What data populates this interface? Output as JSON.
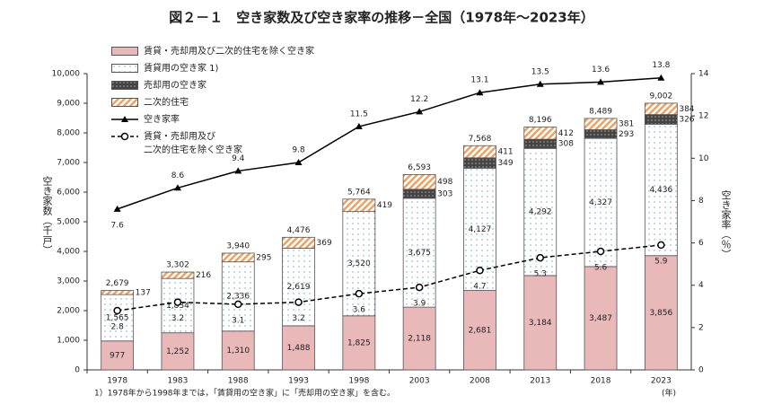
{
  "chart_data": {
    "type": "bar",
    "stacked": true,
    "title": "図２－１　空き家数及び空き家率の推移－全国（1978年～2023年）",
    "y_label": "空き家数（千戸）",
    "y2_label": "空き家率（％）",
    "x_unit": "(年)",
    "footnote": "1）1978年から1998年までは，「賃貸用の空き家」に「売却用の空き家」を含む。",
    "categories": [
      "1978",
      "1983",
      "1988",
      "1993",
      "1998",
      "2003",
      "2008",
      "2013",
      "2018",
      "2023"
    ],
    "ylim": [
      0,
      10000
    ],
    "yticks": [
      0,
      {
        "value": 1000,
        "label": "1,000"
      },
      {
        "value": 2000,
        "label": "2,000"
      },
      {
        "value": 3000,
        "label": "3,000"
      },
      {
        "value": 4000,
        "label": "4,000"
      },
      {
        "value": 5000,
        "label": "5,000"
      },
      {
        "value": 6000,
        "label": "6,000"
      },
      {
        "value": 7000,
        "label": "7,000"
      },
      {
        "value": 8000,
        "label": "8,000"
      },
      {
        "value": 9000,
        "label": "9,000"
      },
      {
        "value": 10000,
        "label": "10,000"
      }
    ],
    "y2lim": [
      0,
      14
    ],
    "y2ticks": [
      0,
      2,
      4,
      6,
      8,
      10,
      12,
      14
    ],
    "series": [
      {
        "name": "賃貸・売却用及び二次的住宅を除く空き家",
        "color": "#e9b8b8",
        "pattern": "solid",
        "label_pos": "center",
        "values": [
          977,
          1252,
          1310,
          1488,
          1825,
          2118,
          2681,
          3184,
          3487,
          3856
        ],
        "value_labels": [
          "977",
          "1,252",
          "1,310",
          "1,488",
          "1,825",
          "2,118",
          "2,681",
          "3,184",
          "3,487",
          "3,856"
        ]
      },
      {
        "name": "賃貸用の空き家 1)",
        "color": "#6fa0c8",
        "pattern": "dots",
        "label_pos": "center",
        "values": [
          1565,
          1834,
          2336,
          2619,
          3520,
          3675,
          4127,
          4292,
          4327,
          4436
        ],
        "value_labels": [
          "1,565",
          "1,834",
          "2,336",
          "2,619",
          "3,520",
          "3,675",
          "4,127",
          "4,292",
          "4,327",
          "4,436"
        ]
      },
      {
        "name": "売却用の空き家",
        "color": "#444444",
        "pattern": "darkdots",
        "label_pos": "right",
        "values": [
          null,
          null,
          null,
          null,
          null,
          303,
          349,
          308,
          293,
          326
        ]
      },
      {
        "name": "二次的住宅",
        "color": "#f0a060",
        "pattern": "hatch",
        "label_pos": "right",
        "values": [
          137,
          216,
          295,
          369,
          419,
          498,
          411,
          412,
          381,
          384
        ]
      },
      {
        "name": "空き家率",
        "type": "line",
        "axis": "y2",
        "color": "#000000",
        "marker": "triangle",
        "dash": false,
        "label_pos": "above",
        "values": [
          7.6,
          8.6,
          9.4,
          9.8,
          11.5,
          12.2,
          13.1,
          13.5,
          13.6,
          13.8
        ]
      },
      {
        "name": "賃貸・売却用及び\n二次的住宅を除く空き家",
        "type": "line",
        "axis": "y2",
        "color": "#000000",
        "marker": "circle",
        "dash": true,
        "label_pos": "below",
        "values": [
          2.8,
          3.2,
          3.1,
          3.2,
          3.6,
          3.9,
          4.7,
          5.3,
          5.6,
          5.9
        ]
      }
    ],
    "totals": [
      2679,
      3302,
      3940,
      4476,
      5764,
      6593,
      7568,
      8196,
      8489,
      9002
    ],
    "total_labels": [
      "2,679",
      "3,302",
      "3,940",
      "4,476",
      "5,764",
      "6,593",
      "7,568",
      "8,196",
      "8,489",
      "9,002"
    ]
  }
}
